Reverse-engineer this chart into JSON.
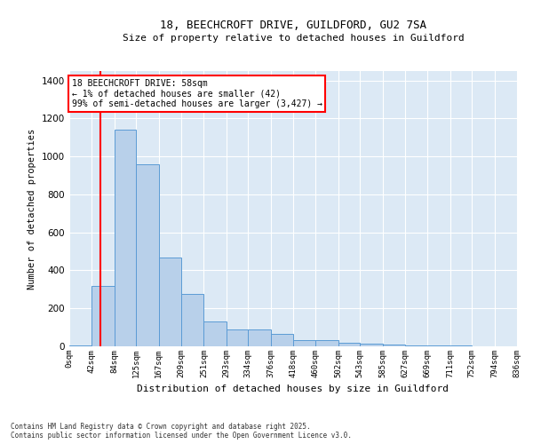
{
  "title_line1": "18, BEECHCROFT DRIVE, GUILDFORD, GU2 7SA",
  "title_line2": "Size of property relative to detached houses in Guildford",
  "xlabel": "Distribution of detached houses by size in Guildford",
  "ylabel": "Number of detached properties",
  "bar_color": "#b8d0ea",
  "bar_edge_color": "#5b9bd5",
  "background_color": "#dce9f5",
  "annotation_text": "18 BEECHCROFT DRIVE: 58sqm\n← 1% of detached houses are smaller (42)\n99% of semi-detached houses are larger (3,427) →",
  "annotation_box_color": "white",
  "annotation_box_edge": "red",
  "vline_x": 58,
  "vline_color": "red",
  "categories": [
    "0sqm",
    "42sqm",
    "84sqm",
    "125sqm",
    "167sqm",
    "209sqm",
    "251sqm",
    "293sqm",
    "334sqm",
    "376sqm",
    "418sqm",
    "460sqm",
    "502sqm",
    "543sqm",
    "585sqm",
    "627sqm",
    "669sqm",
    "711sqm",
    "752sqm",
    "794sqm",
    "836sqm"
  ],
  "bin_edges": [
    0,
    42,
    84,
    125,
    167,
    209,
    251,
    293,
    334,
    376,
    418,
    460,
    502,
    543,
    585,
    627,
    669,
    711,
    752,
    794,
    836
  ],
  "values": [
    5,
    320,
    1140,
    960,
    470,
    275,
    130,
    90,
    90,
    65,
    35,
    35,
    20,
    15,
    8,
    5,
    3,
    5,
    0,
    0
  ],
  "ylim": [
    0,
    1450
  ],
  "yticks": [
    0,
    200,
    400,
    600,
    800,
    1000,
    1200,
    1400
  ],
  "footnote": "Contains HM Land Registry data © Crown copyright and database right 2025.\nContains public sector information licensed under the Open Government Licence v3.0."
}
